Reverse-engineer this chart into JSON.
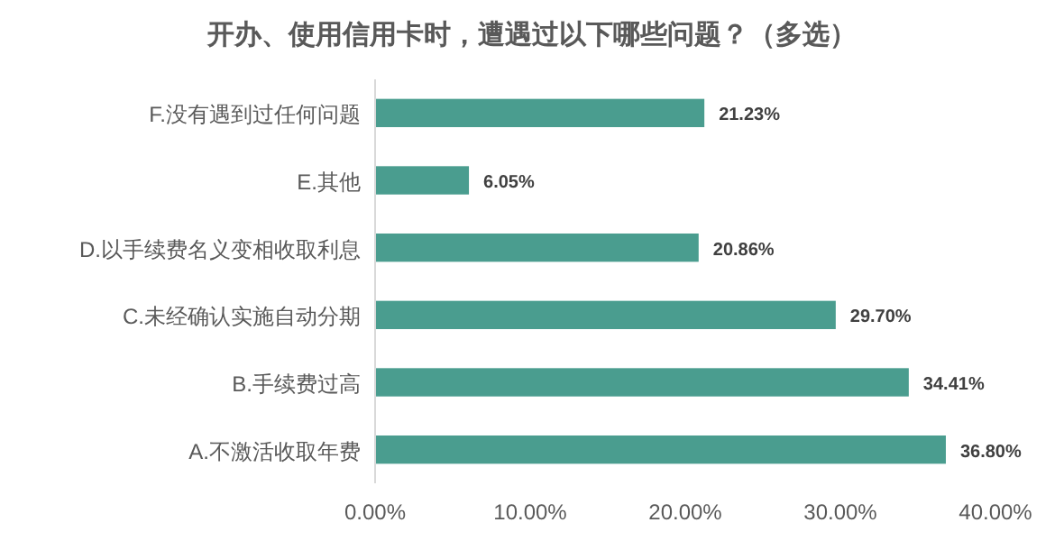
{
  "chart_data": {
    "type": "bar",
    "orientation": "horizontal",
    "title": "开办、使用信用卡时，遭遇过以下哪些问题？（多选）",
    "categories": [
      "F.没有遇到过任何问题",
      "E.其他",
      "D.以手续费名义变相收取利息",
      "C.未经确认实施自动分期",
      "B.手续费过高",
      "A.不激活收取年费"
    ],
    "values": [
      21.23,
      6.05,
      20.86,
      29.7,
      34.41,
      36.8
    ],
    "value_labels": [
      "21.23%",
      "6.05%",
      "20.86%",
      "29.70%",
      "34.41%",
      "36.80%"
    ],
    "color": "#4a9d8f",
    "xlim": [
      0,
      40
    ],
    "xticks": [
      {
        "value": 0,
        "label": "0.00%"
      },
      {
        "value": 10,
        "label": "10.00%"
      },
      {
        "value": 20,
        "label": "20.00%"
      },
      {
        "value": 30,
        "label": "30.00%"
      },
      {
        "value": 40,
        "label": "40.00%"
      }
    ],
    "grid": false
  }
}
